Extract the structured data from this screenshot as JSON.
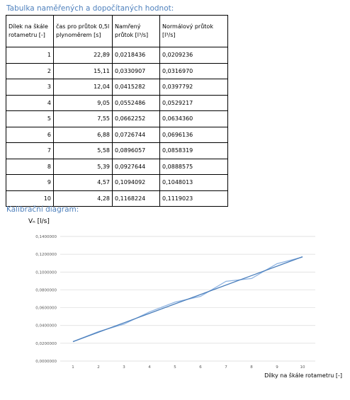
{
  "header": {
    "title": "Tabulka naměřených a dopočítaných  hodnot:"
  },
  "table": {
    "columns": [
      "Dílek na škále rotametru [-]",
      "čas pro průtok 0,5l plynoměrem [s]",
      "Namřený průtok [l³/s]",
      "Normálový průtok [l³/s]"
    ],
    "rows": [
      [
        "1",
        "22,89",
        "0,0218436",
        "0,0209236"
      ],
      [
        "2",
        "15,11",
        "0,0330907",
        "0,0316970"
      ],
      [
        "3",
        "12,04",
        "0,0415282",
        "0,0397792"
      ],
      [
        "4",
        "9,05",
        "0,0552486",
        "0,0529217"
      ],
      [
        "5",
        "7,55",
        "0,0662252",
        "0,0634360"
      ],
      [
        "6",
        "6,88",
        "0,0726744",
        "0,0696136"
      ],
      [
        "7",
        "5,58",
        "0,0896057",
        "0,0858319"
      ],
      [
        "8",
        "5,39",
        "0,0927644",
        "0,0888575"
      ],
      [
        "9",
        "4,57",
        "0,1094092",
        "0,1048013"
      ],
      [
        "10",
        "4,28",
        "0,1168224",
        "0,1119023"
      ]
    ]
  },
  "chart_data": {
    "type": "line",
    "title": "Kalibrační diagram:",
    "y_label": "Vₙ [l/s]",
    "x_label": "Dílky na škále rotametru  [-]",
    "categories": [
      "1",
      "2",
      "3",
      "4",
      "5",
      "6",
      "7",
      "8",
      "9",
      "10"
    ],
    "series": [
      {
        "color": "#8db3e2",
        "values": [
          0.0218436,
          0.0330907,
          0.0415282,
          0.0552486,
          0.0662252,
          0.0726744,
          0.0896057,
          0.0927644,
          0.1094092,
          0.1168224
        ]
      },
      {
        "color": "#4a7ebb",
        "values": [
          0.0218,
          0.0324,
          0.043,
          0.0536,
          0.0642,
          0.0748,
          0.0854,
          0.096,
          0.1066,
          0.1172
        ]
      }
    ],
    "ylim": [
      0,
      0.14
    ],
    "yticks": [
      {
        "value": 0,
        "label": "0,0000000"
      },
      {
        "value": 0.02,
        "label": "0,0200000"
      },
      {
        "value": 0.04,
        "label": "0,0400000"
      },
      {
        "value": 0.06,
        "label": "0,0600000"
      },
      {
        "value": 0.08,
        "label": "0,0800000"
      },
      {
        "value": 0.1,
        "label": "0,1000000"
      },
      {
        "value": 0.12,
        "label": "0,1200000"
      },
      {
        "value": 0.14,
        "label": "0,1400000"
      }
    ],
    "grid": true
  }
}
